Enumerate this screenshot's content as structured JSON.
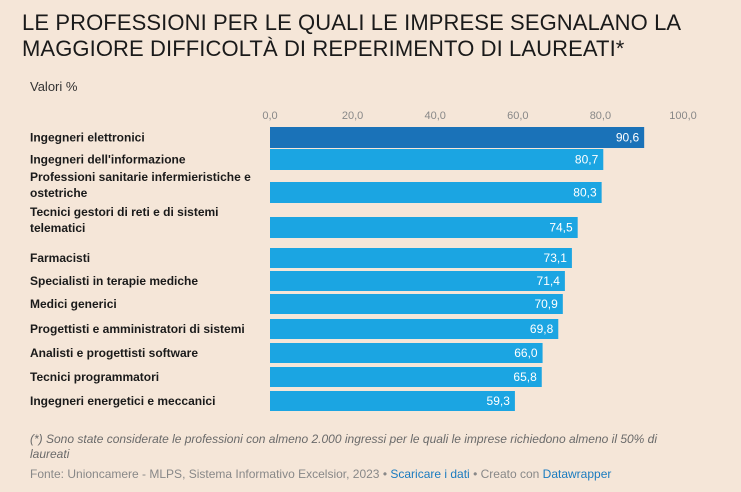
{
  "header": {
    "title": "LE PROFESSIONI PER LE QUALI LE IMPRESE SEGNALANO LA MAGGIORE DIFFICOLTÀ DI REPERIMENTO DI LAUREATI*",
    "subtitle": "Valori %"
  },
  "chart_data": {
    "type": "bar",
    "orientation": "horizontal",
    "title": "LE PROFESSIONI PER LE QUALI LE IMPRESE SEGNALANO LA MAGGIORE DIFFICOLTÀ DI REPERIMENTO DI LAUREATI*",
    "ylabel": "Valori %",
    "xlim": [
      0,
      100
    ],
    "ticks": [
      "0,0",
      "20,0",
      "40,0",
      "60,0",
      "80,0",
      "100,0"
    ],
    "categories": [
      "Ingegneri elettronici",
      "Ingegneri dell'informazione",
      "Professioni sanitarie infermieristiche e ostetriche",
      "Tecnici gestori di reti e di sistemi telematici",
      "Farmacisti",
      "Specialisti in terapie mediche",
      "Medici generici",
      "Progettisti e amministratori di sistemi",
      "Analisti e progettisti software",
      "Tecnici programmatori",
      "Ingegneri energetici e meccanici"
    ],
    "category_lines": [
      [
        "Ingegneri elettronici"
      ],
      [
        "Ingegneri dell'informazione"
      ],
      [
        "Professioni sanitarie infermieristiche e",
        "ostetriche"
      ],
      [
        "Tecnici gestori di reti e di sistemi",
        "telematici"
      ],
      [
        "Farmacisti"
      ],
      [
        "Specialisti in terapie mediche"
      ],
      [
        "Medici generici"
      ],
      [
        "Progettisti e amministratori di sistemi"
      ],
      [
        "Analisti e progettisti software"
      ],
      [
        "Tecnici programmatori"
      ],
      [
        "Ingegneri energetici e meccanici"
      ]
    ],
    "values": [
      90.6,
      80.7,
      80.3,
      74.5,
      73.1,
      71.4,
      70.9,
      69.8,
      66.0,
      65.8,
      59.3
    ],
    "value_labels": [
      "90,6",
      "80,7",
      "80,3",
      "74,5",
      "73,1",
      "71,4",
      "70,9",
      "69,8",
      "66,0",
      "65,8",
      "59,3"
    ],
    "highlight_index": 0,
    "colors": {
      "highlight": "#1a72b8",
      "bar": "#1ba5e2"
    }
  },
  "footer": {
    "note": "(*) Sono state considerate le professioni con almeno 2.000 ingressi per le quali le imprese richiedono almeno il 50% di laureati",
    "source": "Fonte: Unioncamere - MLPS, Sistema Informativo Excelsior, 2023",
    "separator": " • ",
    "download_link": "Scaricare i dati",
    "created_prefix": "Creato con ",
    "created_link": "Datawrapper"
  }
}
